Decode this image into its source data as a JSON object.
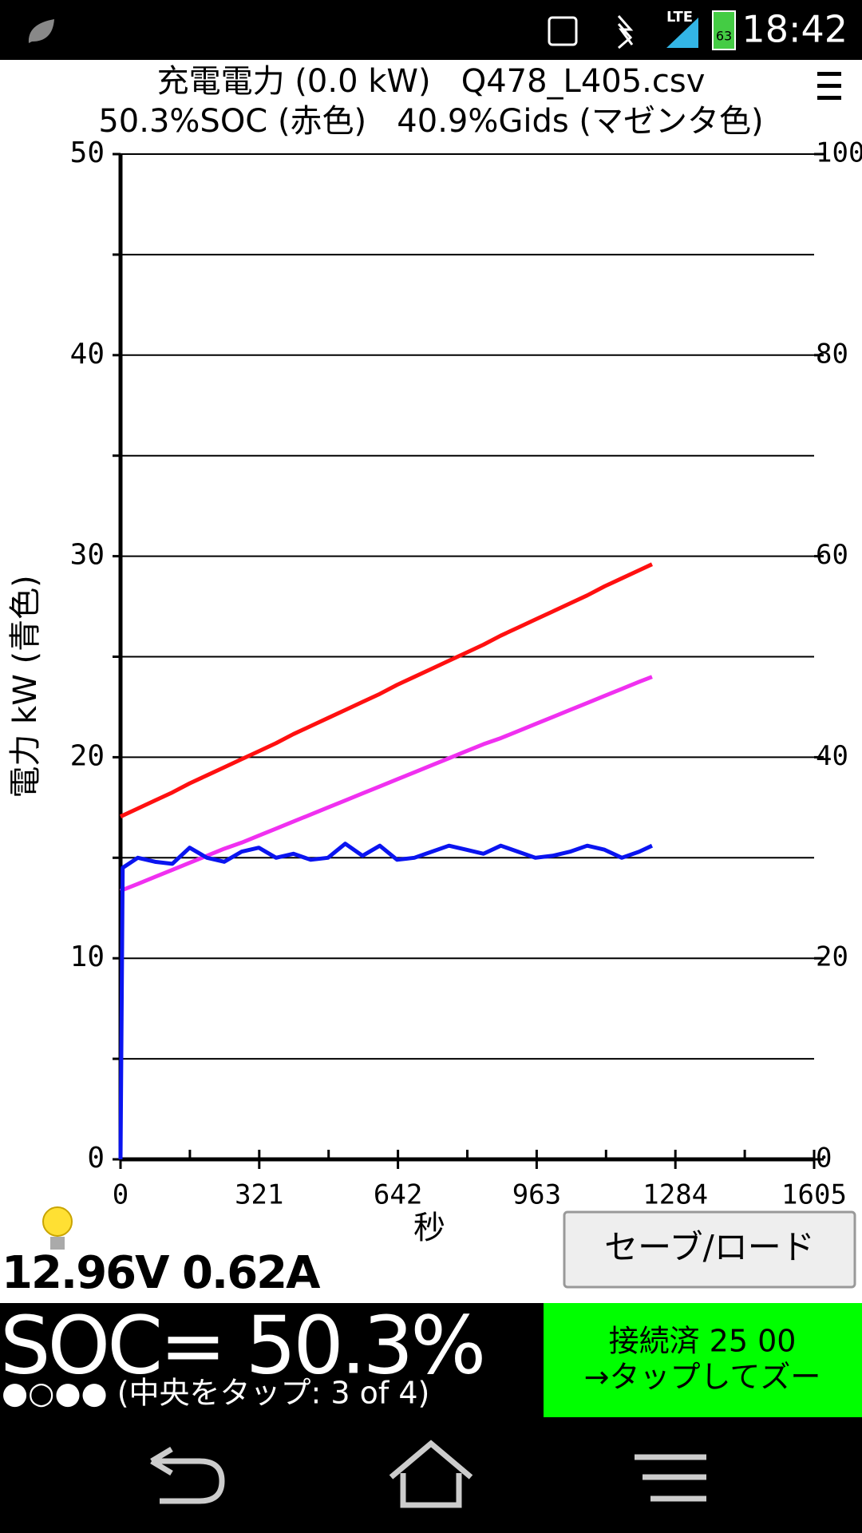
{
  "status_bar": {
    "network": "LTE",
    "battery": "63",
    "time": "18:42"
  },
  "chart_data": {
    "type": "line",
    "title": "充電電力 (0.0 kW)   Q478_L405.csv",
    "subtitle": "50.3%SOC (赤色)   40.9%Gids (マゼンタ色)",
    "y_label": "電力 kW (青色)",
    "x_label": "秒",
    "xlim": [
      0,
      1605
    ],
    "xticks": [
      0,
      321,
      642,
      963,
      1284,
      1605
    ],
    "minor_xticks": [
      160.5,
      481.5,
      802.5,
      1123.5,
      1444.5
    ],
    "ylim": [
      0,
      50
    ],
    "yticks": [
      0,
      10,
      20,
      30,
      40,
      50
    ],
    "minor_yticks": [
      5,
      15,
      25,
      35,
      45
    ],
    "y2lim": [
      0,
      100
    ],
    "y2ticks": [
      0,
      20,
      40,
      60,
      80,
      100
    ],
    "grid": true,
    "x": [
      0,
      5,
      40,
      80,
      120,
      160,
      200,
      240,
      280,
      320,
      360,
      400,
      440,
      480,
      520,
      560,
      600,
      640,
      680,
      720,
      760,
      800,
      840,
      880,
      920,
      960,
      1000,
      1040,
      1080,
      1120,
      1160,
      1200,
      1230
    ],
    "series": [
      {
        "name": "SOC",
        "color": "#ff1010",
        "axis": "y2",
        "values": [
          34.1,
          34.2,
          34.9,
          35.7,
          36.5,
          37.4,
          38.2,
          39.0,
          39.8,
          40.6,
          41.4,
          42.3,
          43.1,
          43.9,
          44.7,
          45.5,
          46.3,
          47.2,
          48.0,
          48.8,
          49.6,
          50.4,
          51.2,
          52.1,
          52.9,
          53.7,
          54.5,
          55.3,
          56.1,
          57.0,
          57.8,
          58.6,
          59.2
        ]
      },
      {
        "name": "Gids",
        "color": "#f030f0",
        "axis": "y2",
        "values": [
          26.7,
          26.8,
          27.4,
          28.1,
          28.8,
          29.5,
          30.2,
          30.9,
          31.5,
          32.2,
          32.9,
          33.6,
          34.3,
          35.0,
          35.7,
          36.4,
          37.1,
          37.8,
          38.5,
          39.2,
          39.9,
          40.6,
          41.3,
          41.9,
          42.6,
          43.3,
          44.0,
          44.7,
          45.4,
          46.1,
          46.8,
          47.5,
          48.0
        ]
      },
      {
        "name": "電力",
        "color": "#0a14f0",
        "values": [
          0,
          14.5,
          15.0,
          14.8,
          14.7,
          15.5,
          15.0,
          14.8,
          15.3,
          15.5,
          15.0,
          15.2,
          14.9,
          15.0,
          15.7,
          15.1,
          15.6,
          14.9,
          15.0,
          15.3,
          15.6,
          15.4,
          15.2,
          15.6,
          15.3,
          15.0,
          15.1,
          15.3,
          15.6,
          15.4,
          15.0,
          15.3,
          15.6
        ]
      }
    ]
  },
  "panel": {
    "readout": "12.96V 0.62A",
    "save_button": "セーブ/ロード",
    "soc": "SOC= 50.3%",
    "soc_hint": "●○●● (中央をタップ: 3 of 4)",
    "connection": [
      "接続済 25 00",
      "→タップしてズー"
    ]
  }
}
